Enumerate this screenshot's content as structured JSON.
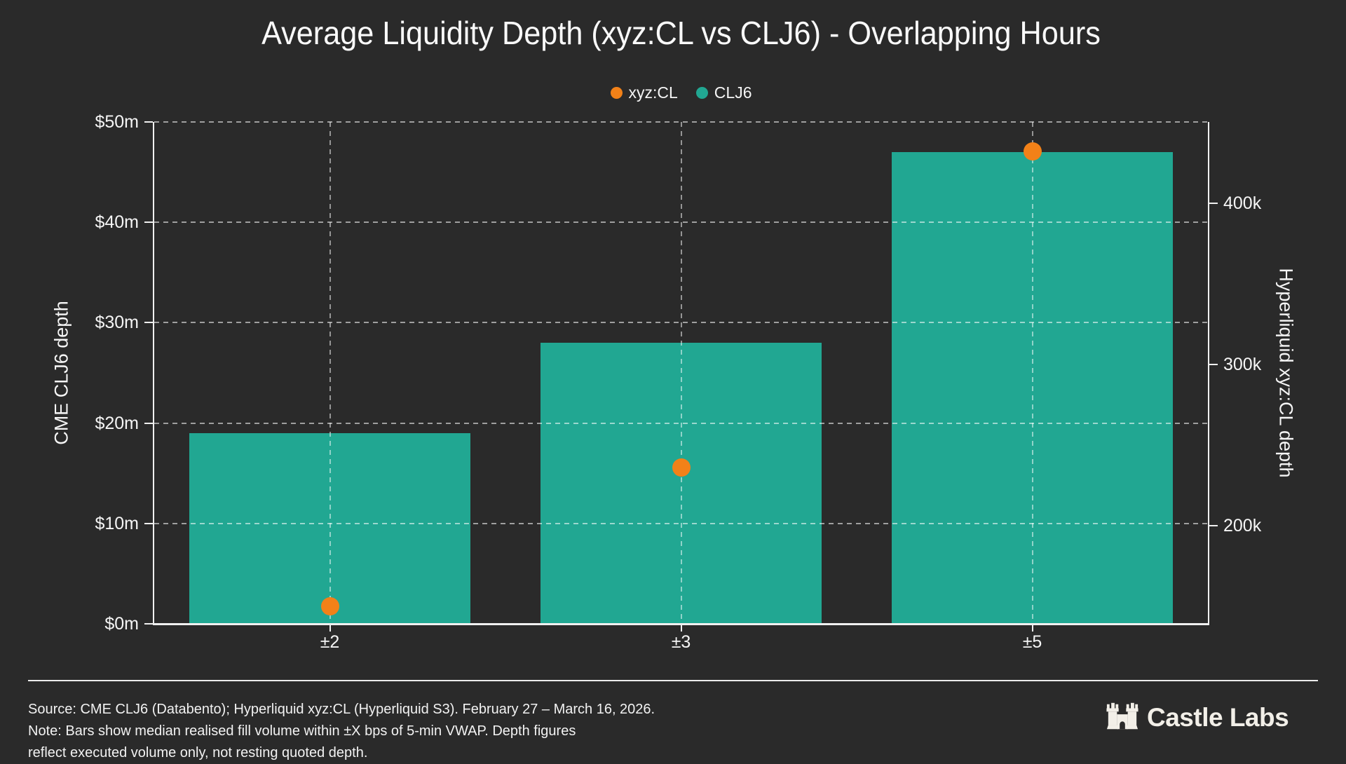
{
  "legend": {
    "items": [
      {
        "label": "xyz:CL",
        "color": "#f28118"
      },
      {
        "label": "CLJ6",
        "color": "#21a792"
      }
    ]
  },
  "chart_data": {
    "type": "bar",
    "title": "Average Liquidity Depth (xyz:CL vs CLJ6) - Overlapping Hours",
    "categories": [
      "±2",
      "±3",
      "±5"
    ],
    "series": [
      {
        "name": "CLJ6",
        "type": "bar",
        "axis": "left",
        "color": "#21a792",
        "values": [
          19000000,
          28000000,
          47000000
        ]
      },
      {
        "name": "xyz:CL",
        "type": "scatter",
        "axis": "right",
        "color": "#f28118",
        "values": [
          150000,
          236000,
          432000
        ]
      }
    ],
    "xlabel": "",
    "left_axis": {
      "label": "CME CLJ6 depth",
      "ylim": [
        0,
        50000000
      ],
      "tick_values": [
        0,
        10000000,
        20000000,
        30000000,
        40000000,
        50000000
      ],
      "tick_labels": [
        "$0m",
        "$10m",
        "$20m",
        "$30m",
        "$40m",
        "$50m"
      ]
    },
    "right_axis": {
      "label": "Hyperliquid xyz:CL depth",
      "ylim": [
        139000,
        450400
      ],
      "tick_values": [
        200000,
        300000,
        400000
      ],
      "tick_labels": [
        "200k",
        "300k",
        "400k"
      ]
    },
    "grid": true,
    "legend_position": "top-center"
  },
  "footer": {
    "source_line": "Source: CME CLJ6 (Databento); Hyperliquid xyz:CL (Hyperliquid S3). February 27 – March 16, 2026.",
    "note_line1": "Note: Bars show median realised fill volume within ±X bps of 5-min VWAP. Depth figures",
    "note_line2": "reflect executed volume only, not resting quoted depth.",
    "brand": {
      "name": "Castle Labs",
      "icon": "castle-icon"
    }
  },
  "colors": {
    "background": "#2a2a2a",
    "bar_teal": "#21a792",
    "dot_orange": "#f28118",
    "text": "#f5f5f5",
    "divider": "#ececec",
    "brand_cream": "#f2efe8"
  }
}
